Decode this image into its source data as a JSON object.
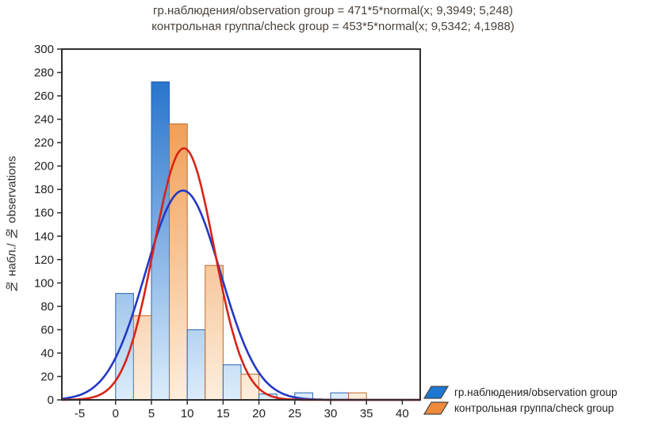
{
  "titles": {
    "line1": "гр.наблюдения/observation group = 471*5*normal(x; 9,3949; 5,248)",
    "line2": "контрольная группа/check group = 453*5*normal(x; 9,5342; 4,1988)"
  },
  "y_axis_label": "№ набл./ № observations",
  "legend": [
    {
      "label": "гр.наблюдения/observation group",
      "color": "#1e78d2",
      "stroke": "#1b4f9c"
    },
    {
      "label": "контрольная группа/check group",
      "color": "#ee8a3c",
      "stroke": "#b5531f"
    }
  ],
  "chart_data": {
    "type": "bar",
    "title": "гр.наблюдения/observation group = 471*5*normal(x; 9,3949; 5,248) | контрольная группа/check group = 453*5*normal(x; 9,5342; 4,1988)",
    "xlabel": "",
    "ylabel": "№ набл./ № observations",
    "xlim": [
      -7.5,
      42.5
    ],
    "ylim": [
      0,
      300
    ],
    "x_ticks": [
      -5,
      0,
      5,
      10,
      15,
      20,
      25,
      30,
      35,
      40
    ],
    "y_ticks": [
      0,
      20,
      40,
      60,
      80,
      100,
      120,
      140,
      160,
      180,
      200,
      220,
      240,
      260,
      280,
      300
    ],
    "bin_width": 5,
    "grid": false,
    "legend_position": "bottom-right",
    "series": [
      {
        "name": "гр.наблюдения/observation group",
        "color_top": "#1668c8",
        "color_bottom": "#dcedfb",
        "stroke": "#2b63b0"
      },
      {
        "name": "контрольная группа/check group",
        "color_top": "#ec8a35",
        "color_bottom": "#fdeedd",
        "stroke": "#c06a2a"
      }
    ],
    "bins": [
      {
        "start": 0,
        "end": 5,
        "observation": 91,
        "check": 72
      },
      {
        "start": 5,
        "end": 10,
        "observation": 272,
        "check": 236
      },
      {
        "start": 10,
        "end": 15,
        "observation": 60,
        "check": 115
      },
      {
        "start": 15,
        "end": 20,
        "observation": 30,
        "check": 22
      },
      {
        "start": 20,
        "end": 25,
        "observation": 5,
        "check": 0
      },
      {
        "start": 25,
        "end": 30,
        "observation": 6,
        "check": 0
      },
      {
        "start": 30,
        "end": 35,
        "observation": 6,
        "check": 6
      },
      {
        "start": 35,
        "end": 40,
        "observation": 0,
        "check": 0
      }
    ],
    "curves": [
      {
        "name": "observation group fit",
        "count": 471,
        "bin_width": 5,
        "mean": 9.3949,
        "sd": 5.248,
        "peak": 179,
        "color": "#2438c2"
      },
      {
        "name": "check group fit",
        "count": 453,
        "bin_width": 5,
        "mean": 9.5342,
        "sd": 4.1988,
        "peak": 215,
        "color": "#d62418"
      }
    ]
  }
}
